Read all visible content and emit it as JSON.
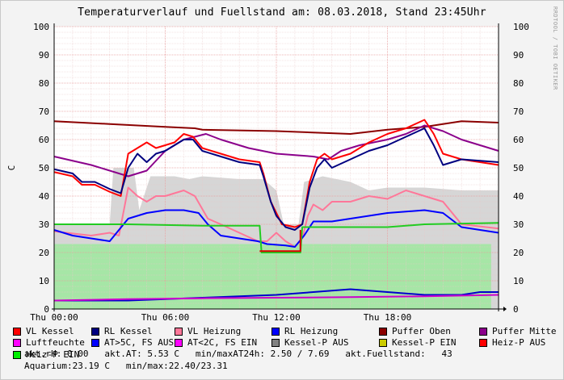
{
  "chart_data": {
    "type": "line",
    "title": "Temperaturverlauf und Fuellstand am: 08.03.2018, Stand 23:45Uhr",
    "ylabel": "C",
    "ylim": [
      0,
      100
    ],
    "yticks": [
      0,
      10,
      20,
      30,
      40,
      50,
      60,
      70,
      80,
      90,
      100
    ],
    "xlim_hours": [
      0,
      24
    ],
    "xticks": [
      {
        "hour": 0,
        "label": "Thu 00:00"
      },
      {
        "hour": 6,
        "label": "Thu 06:00"
      },
      {
        "hour": 12,
        "label": "Thu 12:00"
      },
      {
        "hour": 18,
        "label": "Thu 18:00"
      }
    ],
    "grid": true,
    "series": [
      {
        "name": "Kessel-P AUS",
        "kind": "area",
        "color": "#d6d6d6",
        "points": [
          [
            0,
            30
          ],
          [
            3,
            30
          ],
          [
            3.2,
            50
          ],
          [
            4.3,
            50
          ],
          [
            4.6,
            35
          ],
          [
            5.2,
            47
          ],
          [
            6.5,
            47
          ],
          [
            7.3,
            46
          ],
          [
            8,
            47
          ],
          [
            10,
            46
          ],
          [
            11,
            46
          ],
          [
            11.3,
            46
          ],
          [
            12,
            42
          ],
          [
            12.4,
            30
          ],
          [
            13.2,
            30
          ],
          [
            13.5,
            45
          ],
          [
            14.5,
            47
          ],
          [
            16,
            45
          ],
          [
            17,
            42
          ],
          [
            18,
            43
          ],
          [
            20,
            43
          ],
          [
            22,
            42
          ],
          [
            24,
            42
          ]
        ]
      },
      {
        "name": "Heiz-P EIN",
        "kind": "area",
        "color": "#a6e6a6",
        "points": [
          [
            0,
            23
          ],
          [
            2,
            23
          ],
          [
            4,
            23
          ],
          [
            6,
            23
          ],
          [
            8,
            23
          ],
          [
            10,
            23
          ],
          [
            12,
            23
          ],
          [
            14,
            23
          ],
          [
            16,
            23
          ],
          [
            18,
            23
          ],
          [
            20,
            23
          ],
          [
            23.6,
            23
          ],
          [
            23.6,
            0
          ]
        ]
      },
      {
        "name": "Puffer Oben",
        "color": "#8b0000",
        "points": [
          [
            0,
            66.5
          ],
          [
            3,
            65.5
          ],
          [
            6,
            64.5
          ],
          [
            7.6,
            64
          ],
          [
            8,
            63.5
          ],
          [
            12,
            63
          ],
          [
            16,
            62
          ],
          [
            18,
            63.5
          ],
          [
            20,
            64.5
          ],
          [
            22,
            66.5
          ],
          [
            24,
            66
          ]
        ]
      },
      {
        "name": "Puffer Mitte",
        "color": "#8b008b",
        "points": [
          [
            0,
            54
          ],
          [
            2,
            51
          ],
          [
            4,
            47
          ],
          [
            5,
            49
          ],
          [
            6,
            56
          ],
          [
            7,
            60
          ],
          [
            8.2,
            62
          ],
          [
            9,
            60
          ],
          [
            10.5,
            57
          ],
          [
            12,
            55
          ],
          [
            14,
            54
          ],
          [
            14.8,
            53
          ],
          [
            15.5,
            56
          ],
          [
            16.5,
            58
          ],
          [
            18,
            60
          ],
          [
            19,
            62
          ],
          [
            20,
            65
          ],
          [
            21,
            63
          ],
          [
            22,
            60
          ],
          [
            24,
            56
          ]
        ]
      },
      {
        "name": "VL Kessel",
        "color": "#ff0000",
        "points": [
          [
            0,
            48.5
          ],
          [
            1,
            47
          ],
          [
            1.5,
            44
          ],
          [
            2.2,
            44
          ],
          [
            3,
            41.5
          ],
          [
            3.6,
            40
          ],
          [
            4,
            55
          ],
          [
            4.5,
            57
          ],
          [
            5,
            59
          ],
          [
            5.5,
            57
          ],
          [
            6,
            58
          ],
          [
            6.5,
            59
          ],
          [
            7,
            62
          ],
          [
            7.5,
            61
          ],
          [
            8,
            57
          ],
          [
            9,
            55
          ],
          [
            10,
            53
          ],
          [
            11.1,
            52
          ],
          [
            11.3,
            48
          ],
          [
            11.7,
            38
          ],
          [
            12,
            34
          ],
          [
            12.3,
            30
          ],
          [
            13,
            29
          ],
          [
            13.4,
            30
          ],
          [
            13.8,
            45
          ],
          [
            14.2,
            53
          ],
          [
            14.6,
            55
          ],
          [
            15,
            53
          ],
          [
            16,
            55
          ],
          [
            17,
            59
          ],
          [
            18,
            62
          ],
          [
            19,
            64
          ],
          [
            20,
            67
          ],
          [
            20.5,
            62
          ],
          [
            21,
            55
          ],
          [
            22,
            53
          ],
          [
            24,
            51
          ]
        ]
      },
      {
        "name": "RL Kessel",
        "color": "#000080",
        "points": [
          [
            0,
            49.5
          ],
          [
            1,
            48
          ],
          [
            1.5,
            45
          ],
          [
            2.2,
            45
          ],
          [
            3,
            42.5
          ],
          [
            3.6,
            41
          ],
          [
            4,
            50
          ],
          [
            4.5,
            55
          ],
          [
            5,
            52
          ],
          [
            5.5,
            55
          ],
          [
            6,
            56
          ],
          [
            6.5,
            58
          ],
          [
            7,
            60
          ],
          [
            7.5,
            60
          ],
          [
            8,
            56
          ],
          [
            9,
            54
          ],
          [
            10,
            52
          ],
          [
            11.1,
            51
          ],
          [
            11.3,
            47
          ],
          [
            11.7,
            38
          ],
          [
            12,
            33
          ],
          [
            12.5,
            29
          ],
          [
            13,
            28
          ],
          [
            13.4,
            30
          ],
          [
            13.8,
            43
          ],
          [
            14.2,
            50
          ],
          [
            14.6,
            53
          ],
          [
            15,
            50
          ],
          [
            16,
            53
          ],
          [
            17,
            56
          ],
          [
            18,
            58
          ],
          [
            19,
            61
          ],
          [
            20,
            64
          ],
          [
            20.5,
            58
          ],
          [
            21,
            51
          ],
          [
            22,
            53
          ],
          [
            24,
            52
          ]
        ]
      },
      {
        "name": "VL Heizung",
        "color": "#ff7799",
        "points": [
          [
            0,
            27.5
          ],
          [
            2,
            26
          ],
          [
            3,
            27
          ],
          [
            3.5,
            26
          ],
          [
            4,
            43
          ],
          [
            4.5,
            40
          ],
          [
            5,
            38
          ],
          [
            5.5,
            40
          ],
          [
            6,
            40
          ],
          [
            7,
            42
          ],
          [
            7.6,
            40
          ],
          [
            8.3,
            32
          ],
          [
            9,
            30
          ],
          [
            10,
            27
          ],
          [
            11,
            24
          ],
          [
            11.5,
            24
          ],
          [
            12,
            27
          ],
          [
            12.5,
            24
          ],
          [
            13,
            22
          ],
          [
            13.4,
            25
          ],
          [
            13.7,
            33
          ],
          [
            14,
            37
          ],
          [
            14.5,
            35
          ],
          [
            15,
            38
          ],
          [
            16,
            38
          ],
          [
            17,
            40
          ],
          [
            18,
            39
          ],
          [
            19,
            42
          ],
          [
            20,
            40
          ],
          [
            21,
            38
          ],
          [
            22,
            30
          ],
          [
            24,
            28.5
          ]
        ]
      },
      {
        "name": "RL Heizung",
        "color": "#0000ff",
        "points": [
          [
            0,
            28
          ],
          [
            1,
            26
          ],
          [
            2,
            25
          ],
          [
            3,
            24
          ],
          [
            3.5,
            28
          ],
          [
            4,
            32
          ],
          [
            4.5,
            33
          ],
          [
            5,
            34
          ],
          [
            6,
            35
          ],
          [
            7,
            35
          ],
          [
            7.8,
            34
          ],
          [
            8.3,
            30
          ],
          [
            9,
            26
          ],
          [
            10,
            25
          ],
          [
            11,
            24
          ],
          [
            11.5,
            23
          ],
          [
            12.5,
            22.5
          ],
          [
            13,
            22
          ],
          [
            13.5,
            26
          ],
          [
            14,
            31
          ],
          [
            15,
            31
          ],
          [
            16,
            32
          ],
          [
            17,
            33
          ],
          [
            18,
            34
          ],
          [
            19,
            34.5
          ],
          [
            20,
            35
          ],
          [
            21,
            34
          ],
          [
            22,
            29
          ],
          [
            24,
            27
          ]
        ]
      },
      {
        "name": "AT<2C, FS EIN",
        "color": "#22cc22",
        "points": [
          [
            0,
            30
          ],
          [
            4,
            30
          ],
          [
            8,
            29.5
          ],
          [
            10,
            29.5
          ],
          [
            11.1,
            29.5
          ],
          [
            11.2,
            20
          ],
          [
            13.3,
            20
          ],
          [
            13.4,
            29
          ],
          [
            16,
            29
          ],
          [
            18,
            29
          ],
          [
            20,
            30
          ],
          [
            24,
            30.5
          ]
        ]
      },
      {
        "name": "AT>5C, FS AUS",
        "color": "#0000cc",
        "points": [
          [
            0,
            3
          ],
          [
            4,
            3
          ],
          [
            8,
            4
          ],
          [
            10,
            4.5
          ],
          [
            12,
            5
          ],
          [
            14,
            6
          ],
          [
            16,
            7
          ],
          [
            18,
            6
          ],
          [
            20,
            5
          ],
          [
            22,
            5
          ],
          [
            23,
            6
          ],
          [
            24,
            6
          ]
        ]
      },
      {
        "name": "Luftfeuchte",
        "color": "#cc00cc",
        "points": [
          [
            0,
            3
          ],
          [
            4,
            3.5
          ],
          [
            8,
            3.8
          ],
          [
            12,
            4
          ],
          [
            16,
            4.2
          ],
          [
            20,
            4.5
          ],
          [
            24,
            5
          ]
        ]
      },
      {
        "name": "Heiz-P AUS",
        "color": "#dd0000",
        "points": [
          [
            11.1,
            20.5
          ],
          [
            13.3,
            20.5
          ],
          [
            13.3,
            28
          ]
        ]
      }
    ]
  },
  "legend": [
    {
      "label": "VL Kessel",
      "color": "#ff0000"
    },
    {
      "label": "RL Kessel",
      "color": "#000080"
    },
    {
      "label": "VL Heizung",
      "color": "#ff7799"
    },
    {
      "label": "RL Heizung",
      "color": "#0000ff"
    },
    {
      "label": "Puffer Oben",
      "color": "#8b0000"
    },
    {
      "label": "Puffer Mitte",
      "color": "#8b008b"
    },
    {
      "label": "Luftfeuchte",
      "color": "#ff00ff"
    },
    {
      "label": "AT>5C, FS AUS",
      "color": "#0000ff"
    },
    {
      "label": "AT<2C, FS EIN",
      "color": "#ff00ff"
    },
    {
      "label": "Kessel-P AUS",
      "color": "#808080"
    },
    {
      "label": "Kessel-P EIN",
      "color": "#cccc00"
    },
    {
      "label": "Heiz-P AUS",
      "color": "#ff0000"
    },
    {
      "label": "Heiz-P EIN",
      "color": "#00ee00"
    }
  ],
  "stats": {
    "line3": "akt.rH: 0.00   akt.AT: 5.53 C   min/maxAT24h: 2.50 / 7.69   akt.Fuellstand:   43",
    "line4": "Aquarium:23.19 C   min/max:22.40/23.31"
  },
  "watermark": "RRDTOOL / TOBI OETIKER"
}
